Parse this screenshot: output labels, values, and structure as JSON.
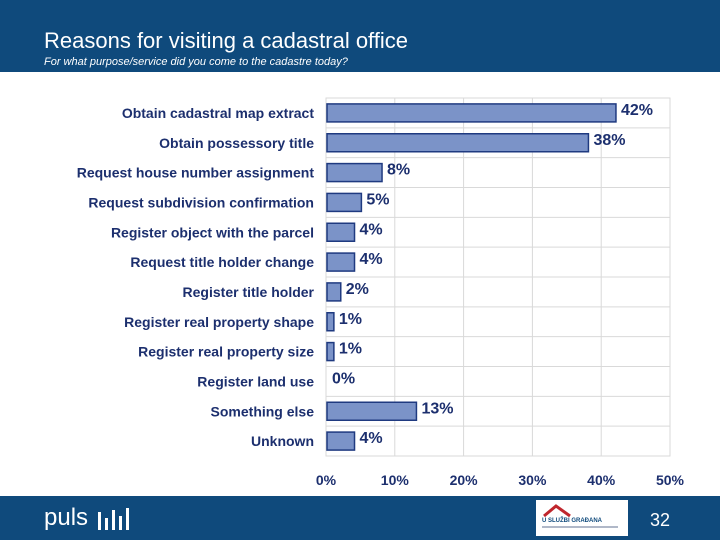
{
  "header": {
    "title": "Reasons for visiting a cadastral office",
    "subtitle": "For what purpose/service did you come to the cadastre today?"
  },
  "footer": {
    "brand": "puls",
    "partner_logo_text": "U SLUŽBI GRAĐANA",
    "page_number": "32"
  },
  "colors": {
    "header_bg": "#0f4a7c",
    "bar_fill": "#7b93c8",
    "bar_stroke": "#1f3a80",
    "text": "#1c2f6e",
    "grid": "#d9d9d9"
  },
  "chart_data": {
    "type": "bar",
    "orientation": "horizontal",
    "categories": [
      "Obtain cadastral map extract",
      "Obtain possessory title",
      "Request house number assignment",
      "Request subdivision confirmation",
      "Register object with the parcel",
      "Request title holder change",
      "Register title holder",
      "Register real property shape",
      "Register real property size",
      "Register land use",
      "Something else",
      "Unknown"
    ],
    "values": [
      42,
      38,
      8,
      5,
      4,
      4,
      2,
      1,
      1,
      0,
      13,
      4
    ],
    "value_labels": [
      "42%",
      "38%",
      "8%",
      "5%",
      "4%",
      "4%",
      "2%",
      "1%",
      "1%",
      "0%",
      "13%",
      "4%"
    ],
    "xlim": [
      0,
      50
    ],
    "xticks": [
      "0%",
      "10%",
      "20%",
      "30%",
      "40%",
      "50%"
    ],
    "grid": true
  }
}
